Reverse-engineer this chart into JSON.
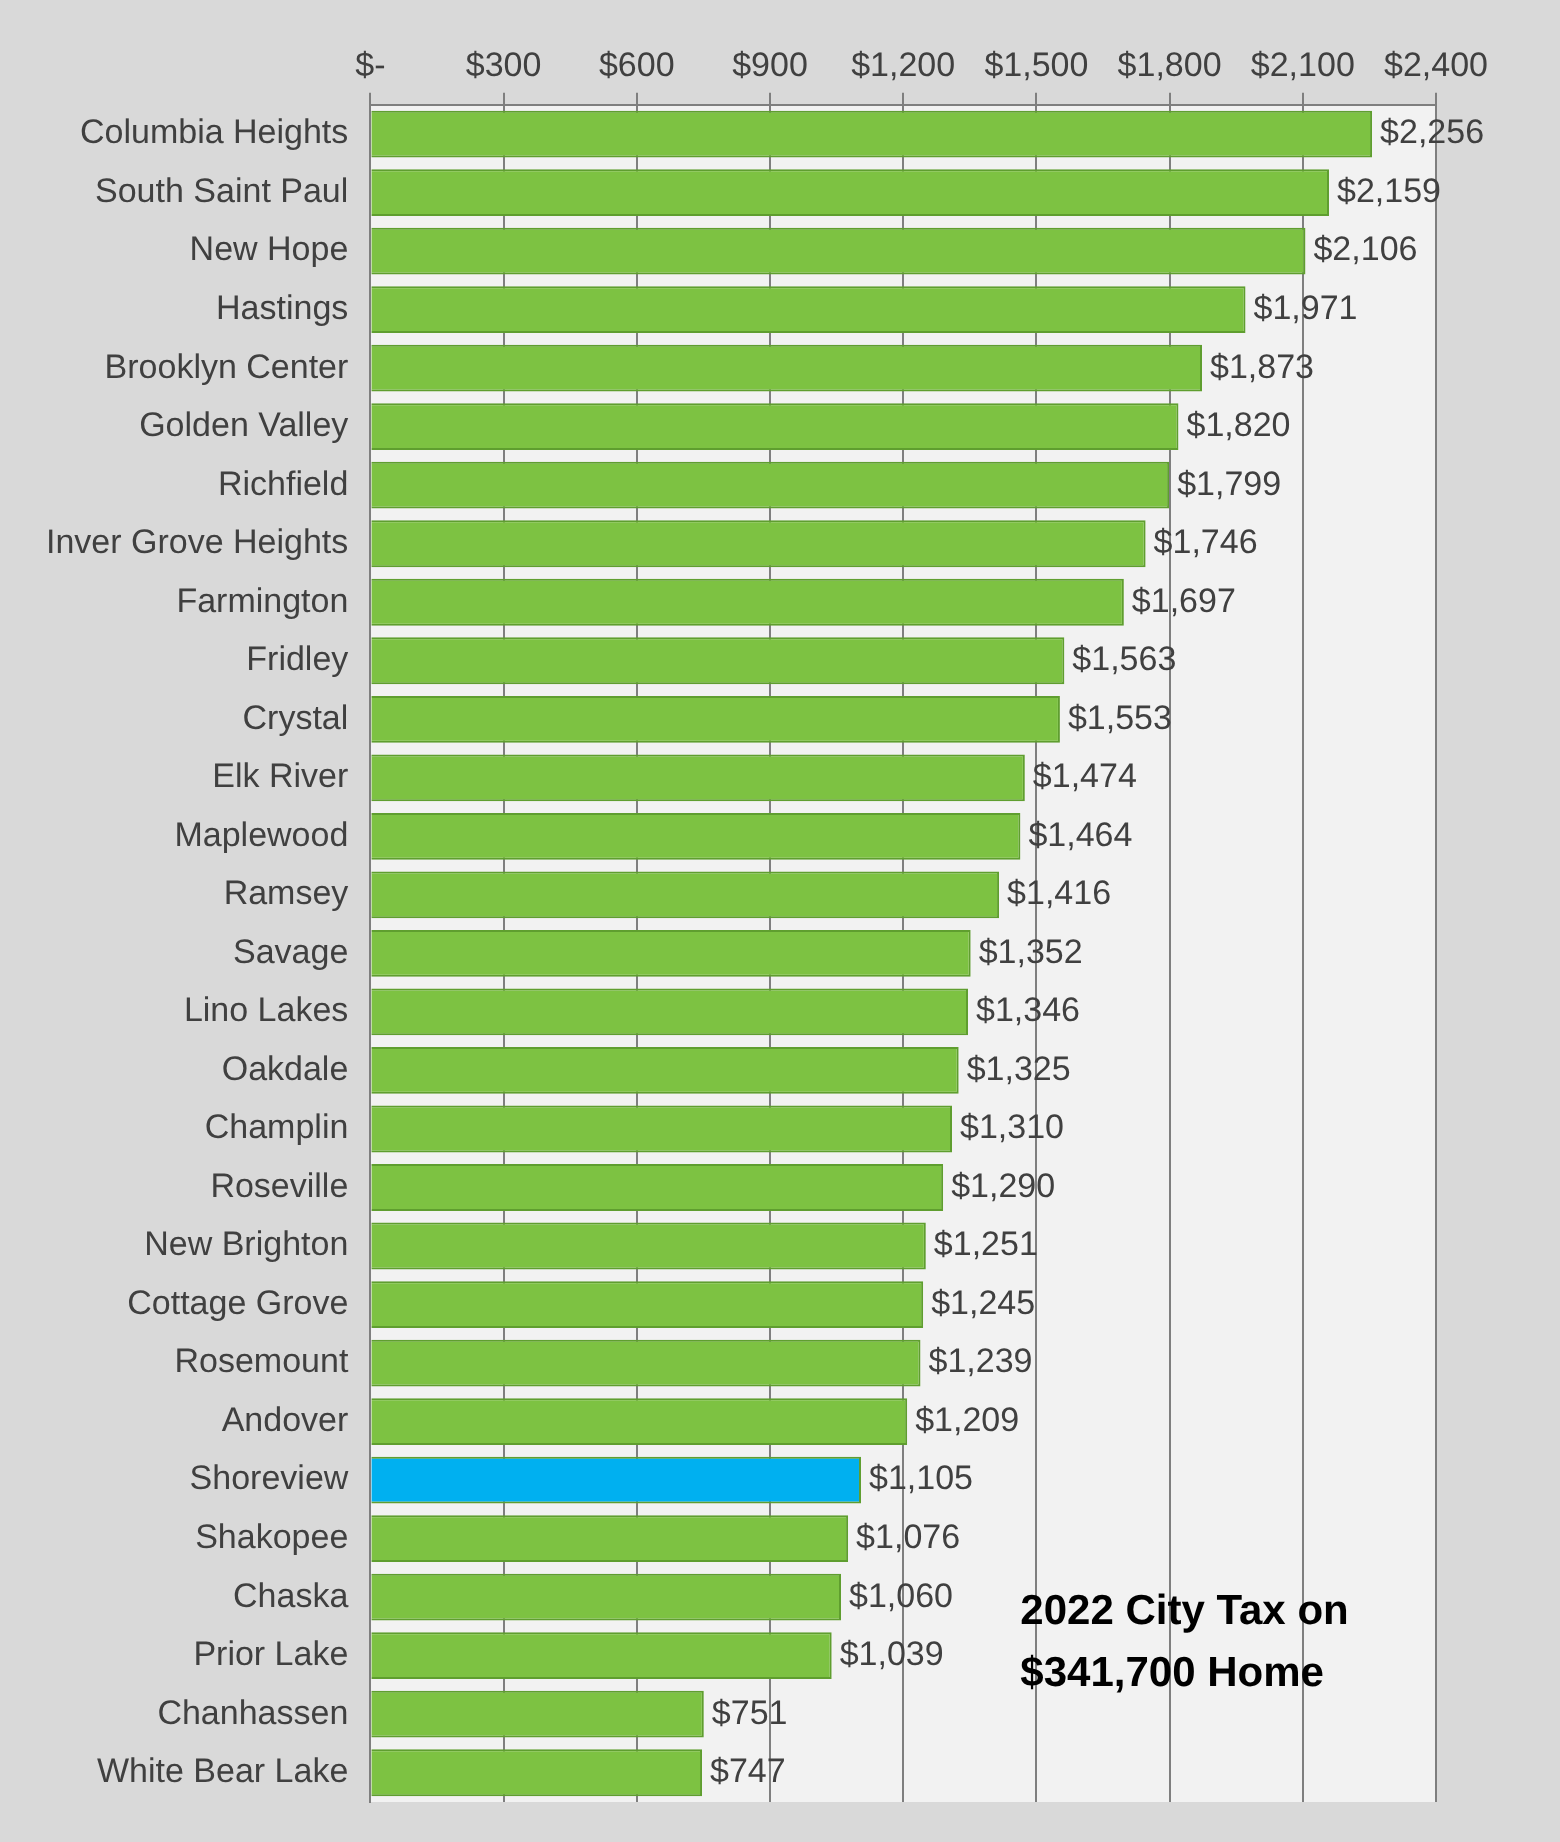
{
  "chart_data": {
    "type": "bar",
    "orientation": "horizontal",
    "categories": [
      "Columbia Heights",
      "South Saint Paul",
      "New Hope",
      "Hastings",
      "Brooklyn Center",
      "Golden Valley",
      "Richfield",
      "Inver Grove Heights",
      "Farmington",
      "Fridley",
      "Crystal",
      "Elk River",
      "Maplewood",
      "Ramsey",
      "Savage",
      "Lino Lakes",
      "Oakdale",
      "Champlin",
      "Roseville",
      "New Brighton",
      "Cottage Grove",
      "Rosemount",
      "Andover",
      "Shoreview",
      "Shakopee",
      "Chaska",
      "Prior Lake",
      "Chanhassen",
      "White Bear Lake"
    ],
    "values": [
      2256,
      2159,
      2106,
      1971,
      1873,
      1820,
      1799,
      1746,
      1697,
      1563,
      1553,
      1474,
      1464,
      1416,
      1352,
      1346,
      1325,
      1310,
      1290,
      1251,
      1245,
      1239,
      1209,
      1105,
      1076,
      1060,
      1039,
      751,
      747
    ],
    "colors": [
      "#7dc242",
      "#7dc242",
      "#7dc242",
      "#7dc242",
      "#7dc242",
      "#7dc242",
      "#7dc242",
      "#7dc242",
      "#7dc242",
      "#7dc242",
      "#7dc242",
      "#7dc242",
      "#7dc242",
      "#7dc242",
      "#7dc242",
      "#7dc242",
      "#7dc242",
      "#7dc242",
      "#7dc242",
      "#7dc242",
      "#7dc242",
      "#7dc242",
      "#7dc242",
      "#00b0f0",
      "#7dc242",
      "#7dc242",
      "#7dc242",
      "#7dc242",
      "#7dc242"
    ],
    "value_labels": [
      "$2,256",
      "$2,159",
      "$2,106",
      "$1,971",
      "$1,873",
      "$1,820",
      "$1,799",
      "$1,746",
      "$1,697",
      "$1,563",
      "$1,553",
      "$1,474",
      "$1,464",
      "$1,416",
      "$1,352",
      "$1,346",
      "$1,325",
      "$1,310",
      "$1,290",
      "$1,251",
      "$1,245",
      "$1,239",
      "$1,209",
      "$1,105",
      "$1,076",
      "$1,060",
      "$1,039",
      "$751",
      "$747"
    ],
    "xlim": [
      0,
      2400
    ],
    "xticks": [
      {
        "value": 0,
        "label": "$-"
      },
      {
        "value": 300,
        "label": "$300"
      },
      {
        "value": 600,
        "label": "$600"
      },
      {
        "value": 900,
        "label": "$900"
      },
      {
        "value": 1200,
        "label": "$1,200"
      },
      {
        "value": 1500,
        "label": "$1,500"
      },
      {
        "value": 1800,
        "label": "$1,800"
      },
      {
        "value": 2100,
        "label": "$2,100"
      },
      {
        "value": 2400,
        "label": "$2,400"
      }
    ],
    "grid": "x",
    "annotations": [
      "2022 City Tax on",
      "$341,700 Home"
    ]
  }
}
